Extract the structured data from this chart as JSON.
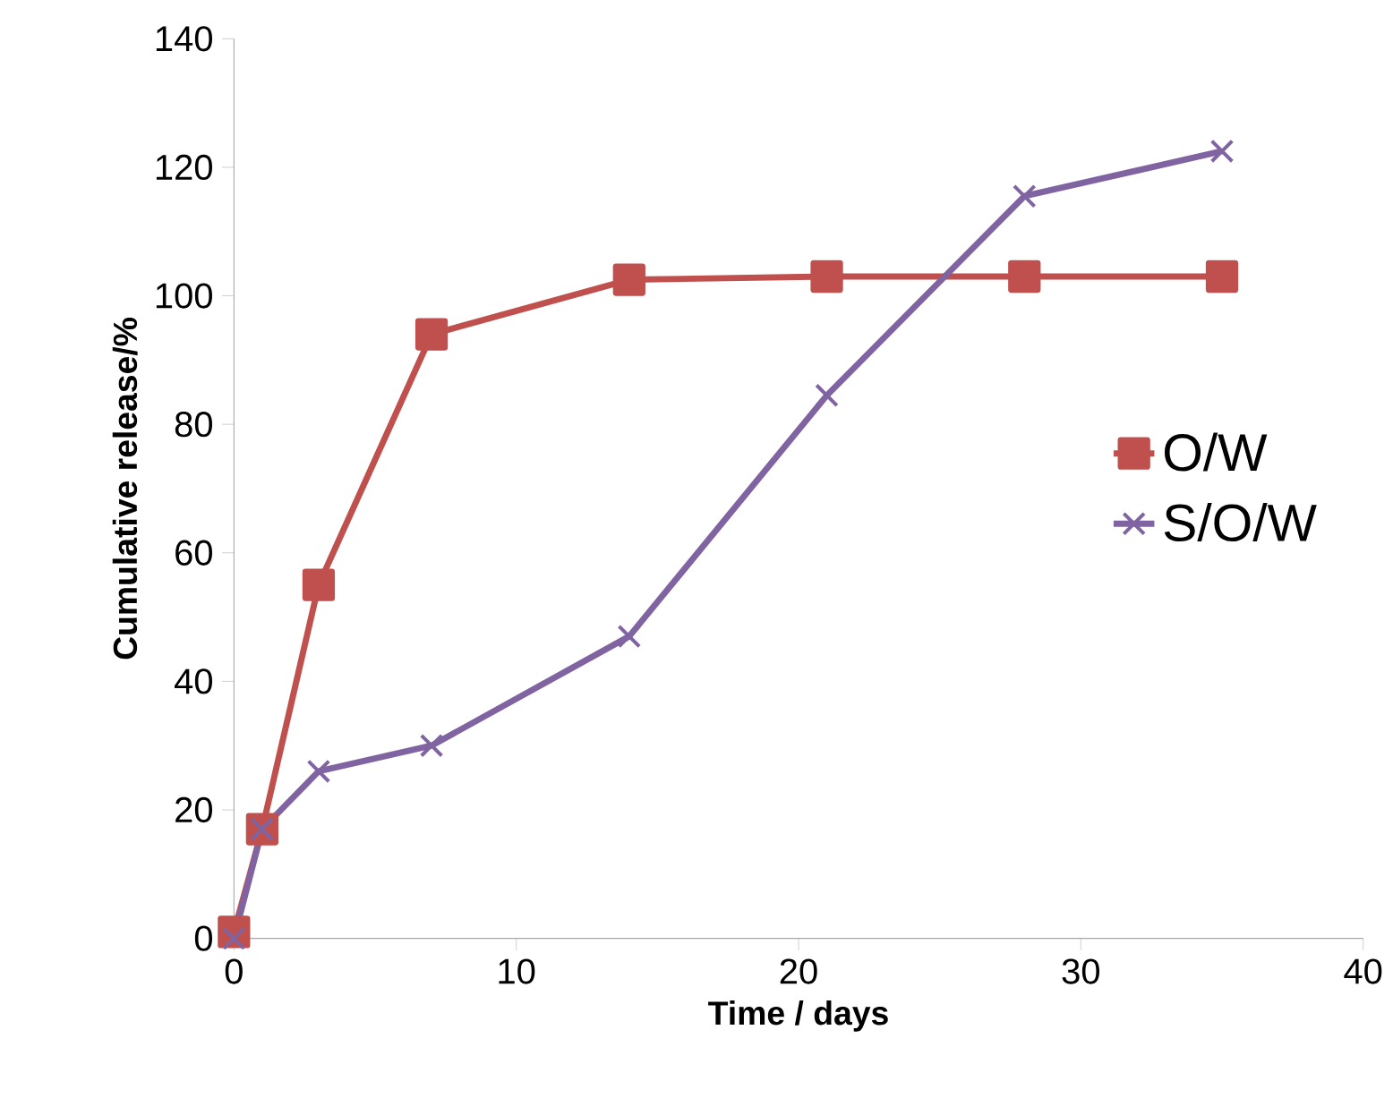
{
  "chart_data": {
    "type": "line",
    "xlabel": "Time / days",
    "ylabel": "Cumulative release/%",
    "xlim": [
      0,
      40
    ],
    "xticks": [
      0,
      10,
      20,
      30,
      40
    ],
    "ylim": [
      0,
      140
    ],
    "yticks": [
      0,
      20,
      40,
      60,
      80,
      100,
      120,
      140
    ],
    "grid": false,
    "legend": "right",
    "series": [
      {
        "name": "O/W",
        "color": "#c0504d",
        "marker": "square",
        "x": [
          0,
          1,
          3,
          7,
          14,
          21,
          28,
          35
        ],
        "values": [
          1,
          17,
          55,
          94,
          102.5,
          103,
          103,
          103
        ]
      },
      {
        "name": "S/O/W",
        "color": "#8064a2",
        "marker": "cross",
        "x": [
          0,
          1,
          3,
          7,
          14,
          21,
          28,
          35
        ],
        "values": [
          0,
          17,
          26,
          30,
          47,
          84.5,
          115.5,
          122.5
        ]
      }
    ]
  }
}
